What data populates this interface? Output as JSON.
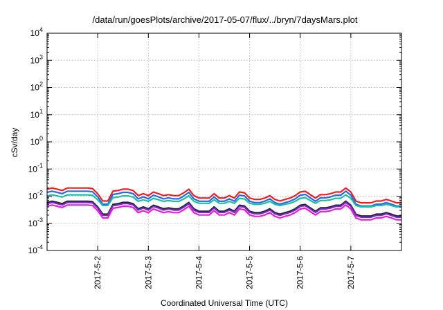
{
  "chart_data": {
    "type": "line",
    "title": "/data/run/goesPlots/archive/2017-05-07/flux/../bryn/7daysMars.plot",
    "xlabel": "Coordinated Universal Time (UTC)",
    "ylabel": "cSv/day",
    "yscale": "log",
    "ylim": [
      0.0001,
      10000
    ],
    "y_ticks": [
      {
        "value": 0.0001,
        "base": "10",
        "exp": "-4"
      },
      {
        "value": 0.001,
        "base": "10",
        "exp": "-3"
      },
      {
        "value": 0.01,
        "base": "10",
        "exp": "-2"
      },
      {
        "value": 0.1,
        "base": "10",
        "exp": "-1"
      },
      {
        "value": 1,
        "base": "10",
        "exp": "0"
      },
      {
        "value": 10,
        "base": "10",
        "exp": "1"
      },
      {
        "value": 100,
        "base": "10",
        "exp": "2"
      },
      {
        "value": 1000,
        "base": "10",
        "exp": "3"
      },
      {
        "value": 10000,
        "base": "10",
        "exp": "4"
      }
    ],
    "xlim": [
      1.0,
      8.0
    ],
    "x_ticks": [
      {
        "value": 2,
        "label": "2017-5-2"
      },
      {
        "value": 3,
        "label": "2017-5-3"
      },
      {
        "value": 4,
        "label": "2017-5-4"
      },
      {
        "value": 5,
        "label": "2017-5-5"
      },
      {
        "value": 6,
        "label": "2017-5-6"
      },
      {
        "value": 7,
        "label": "2017-5-7"
      }
    ],
    "grid": true,
    "x": [
      1.0,
      1.1,
      1.2,
      1.3,
      1.4,
      1.5,
      1.6,
      1.7,
      1.8,
      1.9,
      2.0,
      2.1,
      2.2,
      2.3,
      2.4,
      2.5,
      2.6,
      2.7,
      2.8,
      2.9,
      3.0,
      3.1,
      3.2,
      3.3,
      3.4,
      3.5,
      3.6,
      3.7,
      3.8,
      3.9,
      4.0,
      4.1,
      4.2,
      4.3,
      4.4,
      4.5,
      4.6,
      4.7,
      4.8,
      4.9,
      5.0,
      5.1,
      5.2,
      5.3,
      5.4,
      5.5,
      5.6,
      5.7,
      5.8,
      5.9,
      6.0,
      6.1,
      6.2,
      6.3,
      6.4,
      6.5,
      6.6,
      6.7,
      6.8,
      6.9,
      7.0,
      7.1,
      7.2,
      7.3,
      7.4,
      7.5,
      7.6,
      7.7,
      7.8,
      7.9,
      8.0
    ],
    "base_curve": [
      0.0095,
      0.0105,
      0.0095,
      0.0085,
      0.0105,
      0.0105,
      0.0105,
      0.0105,
      0.0105,
      0.01,
      0.0065,
      0.0035,
      0.0035,
      0.008,
      0.0085,
      0.0095,
      0.0095,
      0.0085,
      0.0055,
      0.0065,
      0.0055,
      0.0075,
      0.0065,
      0.0055,
      0.006,
      0.0055,
      0.0055,
      0.007,
      0.0095,
      0.0055,
      0.0045,
      0.0045,
      0.0045,
      0.0065,
      0.0045,
      0.0045,
      0.0055,
      0.0045,
      0.0075,
      0.007,
      0.0045,
      0.004,
      0.004,
      0.0045,
      0.0055,
      0.004,
      0.0035,
      0.004,
      0.0045,
      0.0055,
      0.0075,
      0.008,
      0.006,
      0.0045,
      0.006,
      0.006,
      0.0065,
      0.0075,
      0.0075,
      0.0105,
      0.0075,
      0.0035,
      0.003,
      0.003,
      0.003,
      0.0035,
      0.0035,
      0.004,
      0.0035,
      0.003,
      0.003
    ],
    "series": [
      {
        "color": "#ee1c1c",
        "factor": 1.9,
        "offset": 0.0
      },
      {
        "color": "#2a66e8",
        "factor": 1.45,
        "offset": 0.0
      },
      {
        "color": "#18c0a0",
        "factor": 0.95,
        "offset": 0.0012
      },
      {
        "color": "#222222",
        "factor": 0.62,
        "offset": 0.0
      },
      {
        "color": "#7a2bd0",
        "factor": 0.56,
        "offset": 0.0
      },
      {
        "color": "#e81cd8",
        "factor": 0.45,
        "offset": 0.0
      }
    ]
  }
}
